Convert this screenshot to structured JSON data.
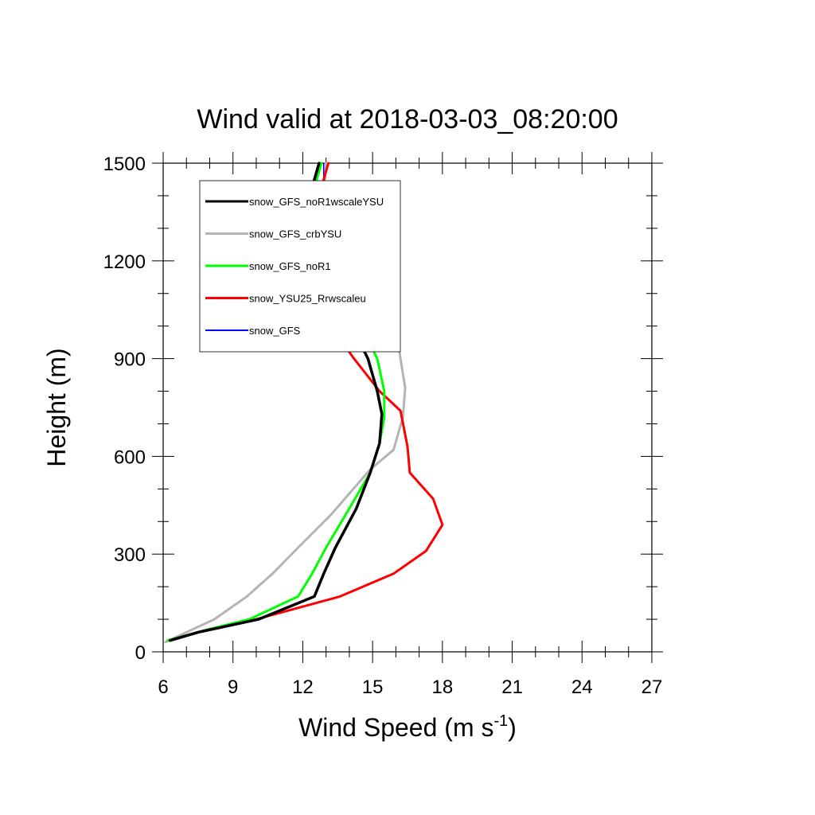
{
  "chart_data": {
    "type": "line",
    "title": "Wind valid at 2018-03-03_08:20:00",
    "xlabel": "Wind Speed (m s",
    "xlabel_sup": "-1",
    "xlabel_end": ")",
    "ylabel": "Height (m)",
    "xlim": [
      6,
      27
    ],
    "ylim": [
      0,
      1500
    ],
    "x_ticks": [
      6,
      9,
      12,
      15,
      18,
      21,
      24,
      27
    ],
    "y_ticks": [
      0,
      300,
      600,
      900,
      1200,
      1500
    ],
    "legend_position": "top-left",
    "series": [
      {
        "name": "snow_GFS_noR1wscaleYSU",
        "color": "#000000",
        "points": [
          [
            6.3,
            35
          ],
          [
            7.5,
            60
          ],
          [
            10.1,
            100
          ],
          [
            12.5,
            170
          ],
          [
            12.9,
            240
          ],
          [
            13.4,
            320
          ],
          [
            14.3,
            440
          ],
          [
            14.9,
            550
          ],
          [
            15.3,
            640
          ],
          [
            15.4,
            730
          ],
          [
            15.2,
            800
          ],
          [
            14.8,
            900
          ],
          [
            14.1,
            1000
          ],
          [
            13.1,
            1100
          ],
          [
            12.3,
            1180
          ],
          [
            12.1,
            1300
          ],
          [
            12.3,
            1400
          ],
          [
            12.7,
            1500
          ]
        ]
      },
      {
        "name": "snow_GFS_crbYSU",
        "color": "#b4b4b4",
        "points": [
          [
            6.1,
            30
          ],
          [
            8.2,
            100
          ],
          [
            9.6,
            170
          ],
          [
            10.7,
            240
          ],
          [
            11.8,
            320
          ],
          [
            13.2,
            420
          ],
          [
            14.9,
            560
          ],
          [
            15.9,
            620
          ],
          [
            16.3,
            720
          ],
          [
            16.4,
            810
          ],
          [
            16.2,
            900
          ],
          [
            16.0,
            1000
          ],
          [
            15.1,
            1100
          ],
          [
            14.1,
            1170
          ],
          [
            13.2,
            1280
          ],
          [
            12.9,
            1400
          ],
          [
            13.0,
            1500
          ]
        ]
      },
      {
        "name": "snow_GFS_noR1",
        "color": "#00ff00",
        "points": [
          [
            6.2,
            35
          ],
          [
            8.0,
            70
          ],
          [
            9.7,
            100
          ],
          [
            11.8,
            170
          ],
          [
            12.4,
            240
          ],
          [
            13.0,
            320
          ],
          [
            14.0,
            440
          ],
          [
            14.9,
            550
          ],
          [
            15.3,
            640
          ],
          [
            15.5,
            720
          ],
          [
            15.5,
            800
          ],
          [
            15.2,
            900
          ],
          [
            14.5,
            1000
          ],
          [
            13.6,
            1100
          ],
          [
            12.4,
            1180
          ],
          [
            12.1,
            1300
          ],
          [
            12.4,
            1400
          ],
          [
            12.8,
            1500
          ]
        ]
      },
      {
        "name": "snow_YSU25_Rrwscaleu",
        "color": "#ff0000",
        "points": [
          [
            6.2,
            35
          ],
          [
            8.0,
            70
          ],
          [
            10.0,
            100
          ],
          [
            13.6,
            170
          ],
          [
            15.9,
            240
          ],
          [
            17.3,
            310
          ],
          [
            18.0,
            390
          ],
          [
            17.6,
            470
          ],
          [
            16.6,
            550
          ],
          [
            16.5,
            630
          ],
          [
            16.2,
            740
          ],
          [
            15.3,
            800
          ],
          [
            14.2,
            900
          ],
          [
            13.2,
            1000
          ],
          [
            12.4,
            1100
          ],
          [
            12.2,
            1200
          ],
          [
            12.3,
            1310
          ],
          [
            12.7,
            1400
          ],
          [
            13.1,
            1500
          ]
        ]
      },
      {
        "name": "snow_GFS",
        "color": "#0000ff",
        "points": [
          [
            6.1,
            30
          ],
          [
            8.2,
            100
          ],
          [
            9.6,
            170
          ],
          [
            10.7,
            240
          ],
          [
            11.8,
            320
          ],
          [
            13.2,
            420
          ],
          [
            14.9,
            560
          ],
          [
            15.9,
            620
          ],
          [
            16.3,
            720
          ],
          [
            16.4,
            810
          ],
          [
            16.2,
            900
          ],
          [
            16.0,
            1000
          ],
          [
            15.1,
            1100
          ],
          [
            14.1,
            1170
          ],
          [
            13.2,
            1280
          ],
          [
            12.9,
            1400
          ],
          [
            12.9,
            1500
          ]
        ]
      }
    ]
  }
}
